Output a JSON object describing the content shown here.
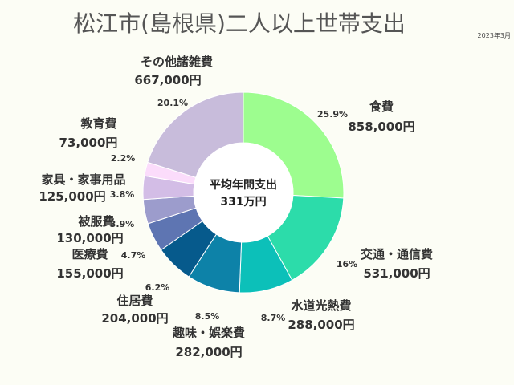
{
  "chart_data": {
    "type": "pie",
    "title": "松江市(島根県)二人以上世帯支出",
    "date_note": "2023年3月",
    "center_label": "平均年間支出",
    "center_total": "331万円",
    "slices": [
      {
        "label": "食費",
        "amount": 858000,
        "amount_text": "858,000円",
        "pct_text": "25.9%",
        "color": "#9dfd8f"
      },
      {
        "label": "交通・通信費",
        "amount": 531000,
        "amount_text": "531,000円",
        "pct_text": "16%",
        "color": "#2cdcaa"
      },
      {
        "label": "水道光熱費",
        "amount": 288000,
        "amount_text": "288,000円",
        "pct_text": "8.7%",
        "color": "#0cc0b9"
      },
      {
        "label": "趣味・娯楽費",
        "amount": 282000,
        "amount_text": "282,000円",
        "pct_text": "8.5%",
        "color": "#0d82a8"
      },
      {
        "label": "住居費",
        "amount": 204000,
        "amount_text": "204,000円",
        "pct_text": "6.2%",
        "color": "#065a8c"
      },
      {
        "label": "医療費",
        "amount": 155000,
        "amount_text": "155,000円",
        "pct_text": "4.7%",
        "color": "#5e75b2"
      },
      {
        "label": "被服費",
        "amount": 130000,
        "amount_text": "130,000円",
        "pct_text": "3.9%",
        "color": "#9c9ccc"
      },
      {
        "label": "家具・家事用品",
        "amount": 125000,
        "amount_text": "125,000円",
        "pct_text": "3.8%",
        "color": "#d3bde6"
      },
      {
        "label": "教育費",
        "amount": 73000,
        "amount_text": "73,000円",
        "pct_text": "2.2%",
        "color": "#fbdcfb"
      },
      {
        "label": "その他諸雑費",
        "amount": 667000,
        "amount_text": "667,000円",
        "pct_text": "20.1%",
        "color": "#c8bcdb"
      }
    ]
  }
}
